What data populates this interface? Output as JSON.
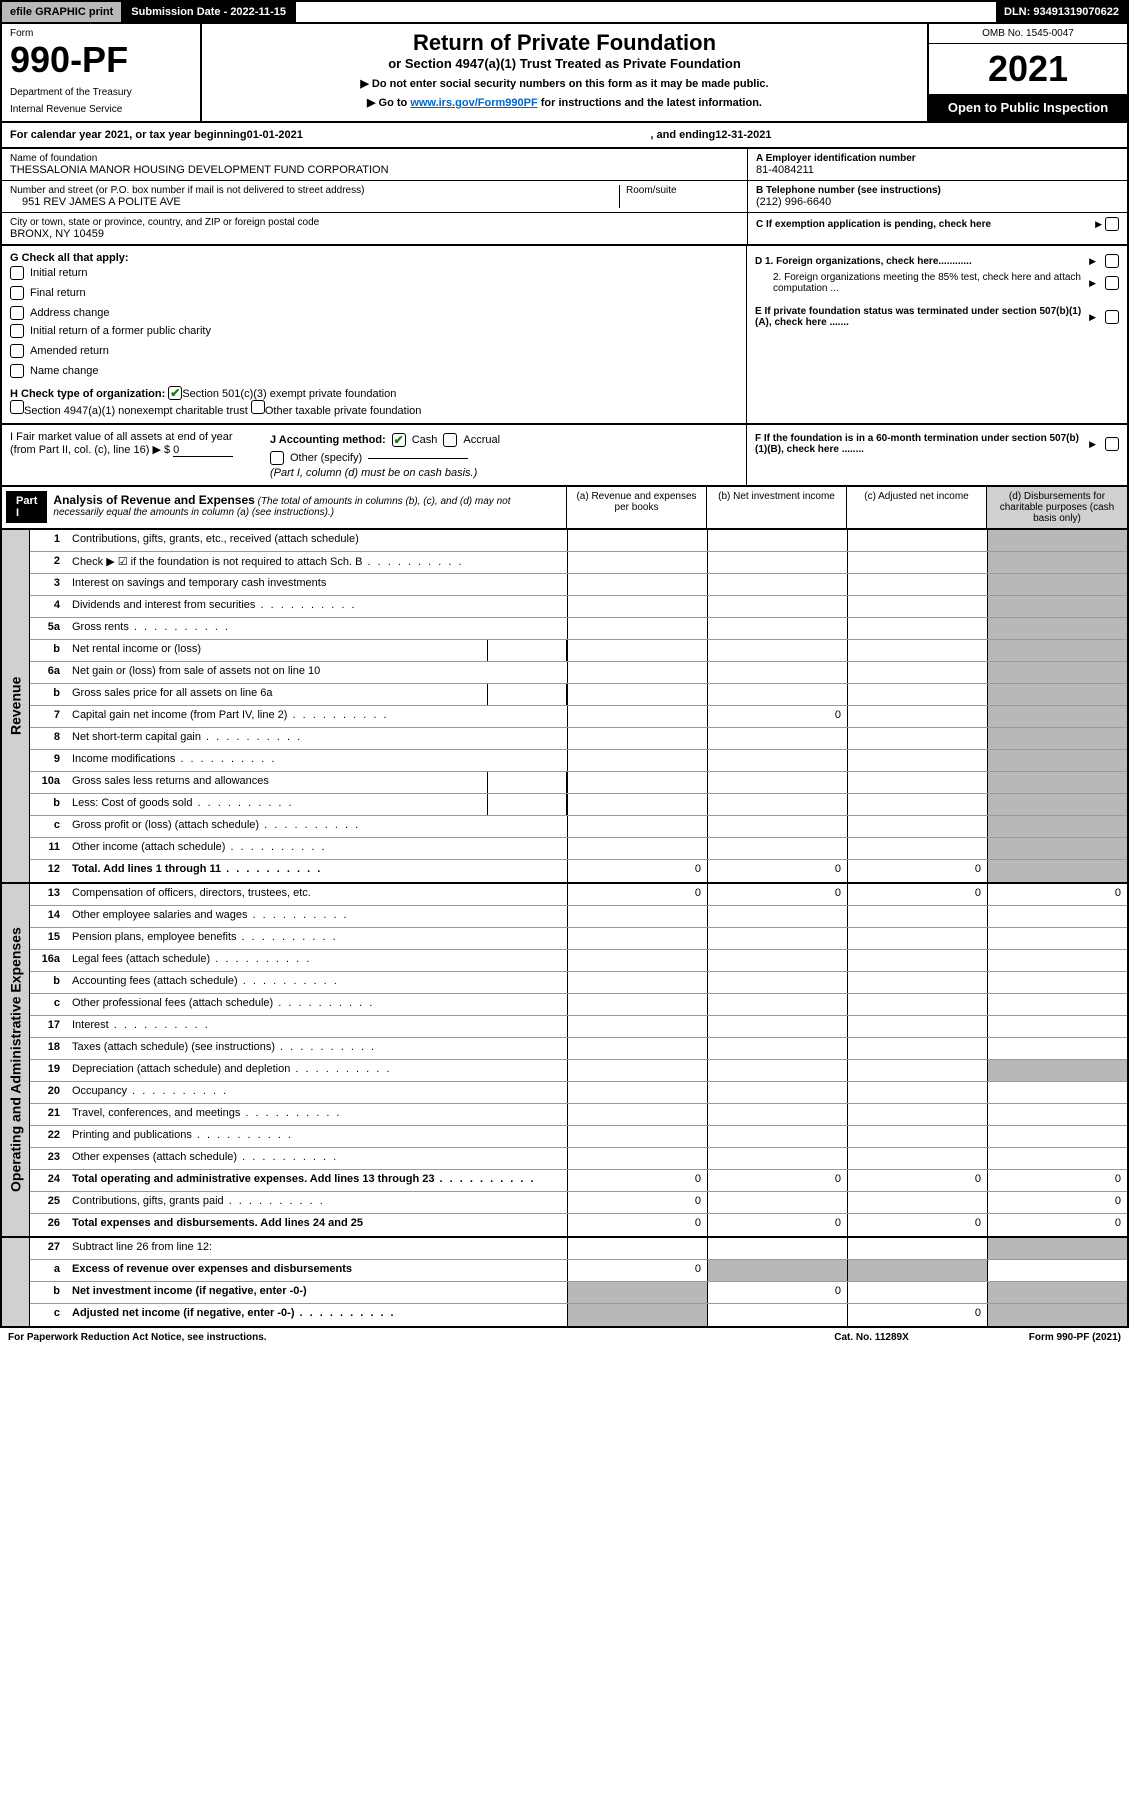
{
  "topbar": {
    "efile": "efile GRAPHIC print",
    "submission_label": "Submission Date - 2022-11-15",
    "dln": "DLN: 93491319070622"
  },
  "header": {
    "form_word": "Form",
    "form_num": "990-PF",
    "dept": "Department of the Treasury",
    "irs": "Internal Revenue Service",
    "title": "Return of Private Foundation",
    "subtitle": "or Section 4947(a)(1) Trust Treated as Private Foundation",
    "note1": "▶ Do not enter social security numbers on this form as it may be made public.",
    "note2_pre": "▶ Go to ",
    "note2_link": "www.irs.gov/Form990PF",
    "note2_post": " for instructions and the latest information.",
    "omb": "OMB No. 1545-0047",
    "year": "2021",
    "open": "Open to Public Inspection"
  },
  "calendar": {
    "text_pre": "For calendar year 2021, or tax year beginning ",
    "begin": "01-01-2021",
    "text_mid": " , and ending ",
    "end": "12-31-2021"
  },
  "info": {
    "name_label": "Name of foundation",
    "name": "THESSALONIA MANOR HOUSING DEVELOPMENT FUND CORPORATION",
    "addr_label": "Number and street (or P.O. box number if mail is not delivered to street address)",
    "addr": "951 REV JAMES A POLITE AVE",
    "room_label": "Room/suite",
    "city_label": "City or town, state or province, country, and ZIP or foreign postal code",
    "city": "BRONX, NY  10459",
    "a_label": "A Employer identification number",
    "a_val": "81-4084211",
    "b_label": "B Telephone number (see instructions)",
    "b_val": "(212) 996-6640",
    "c_label": "C If exemption application is pending, check here",
    "d1_label": "D 1. Foreign organizations, check here............",
    "d2_label": "2. Foreign organizations meeting the 85% test, check here and attach computation ...",
    "e_label": "E  If private foundation status was terminated under section 507(b)(1)(A), check here .......",
    "f_label": "F  If the foundation is in a 60-month termination under section 507(b)(1)(B), check here ........"
  },
  "g": {
    "label": "G Check all that apply:",
    "opts": [
      "Initial return",
      "Final return",
      "Address change",
      "Initial return of a former public charity",
      "Amended return",
      "Name change"
    ]
  },
  "h": {
    "label": "H Check type of organization:",
    "opt1": "Section 501(c)(3) exempt private foundation",
    "opt2": "Section 4947(a)(1) nonexempt charitable trust",
    "opt3": "Other taxable private foundation"
  },
  "i": {
    "label": "I Fair market value of all assets at end of year (from Part II, col. (c), line 16)",
    "prefix": "▶ $",
    "val": "0"
  },
  "j": {
    "label": "J Accounting method:",
    "cash": "Cash",
    "accrual": "Accrual",
    "other": "Other (specify)",
    "note": "(Part I, column (d) must be on cash basis.)"
  },
  "part1": {
    "badge": "Part I",
    "title": "Analysis of Revenue and Expenses",
    "title_note": "(The total of amounts in columns (b), (c), and (d) may not necessarily equal the amounts in column (a) (see instructions).)",
    "cols": {
      "a": "(a)  Revenue and expenses per books",
      "b": "(b)  Net investment income",
      "c": "(c)  Adjusted net income",
      "d": "(d)  Disbursements for charitable purposes (cash basis only)"
    }
  },
  "sections": {
    "revenue": "Revenue",
    "opadmin": "Operating and Administrative Expenses"
  },
  "rows": [
    {
      "n": "1",
      "d": "Contributions, gifts, grants, etc., received (attach schedule)",
      "sec": "rev"
    },
    {
      "n": "2",
      "d": "Check ▶ ☑ if the foundation is not required to attach Sch. B",
      "sec": "rev",
      "dots": true
    },
    {
      "n": "3",
      "d": "Interest on savings and temporary cash investments",
      "sec": "rev"
    },
    {
      "n": "4",
      "d": "Dividends and interest from securities",
      "sec": "rev",
      "dots": true
    },
    {
      "n": "5a",
      "d": "Gross rents",
      "sec": "rev",
      "dots": true
    },
    {
      "n": "b",
      "d": "Net rental income or (loss)",
      "sec": "rev",
      "inset": true
    },
    {
      "n": "6a",
      "d": "Net gain or (loss) from sale of assets not on line 10",
      "sec": "rev"
    },
    {
      "n": "b",
      "d": "Gross sales price for all assets on line 6a",
      "sec": "rev",
      "inset": true
    },
    {
      "n": "7",
      "d": "Capital gain net income (from Part IV, line 2)",
      "sec": "rev",
      "dots": true,
      "b": "0"
    },
    {
      "n": "8",
      "d": "Net short-term capital gain",
      "sec": "rev",
      "dots": true
    },
    {
      "n": "9",
      "d": "Income modifications",
      "sec": "rev",
      "dots": true
    },
    {
      "n": "10a",
      "d": "Gross sales less returns and allowances",
      "sec": "rev",
      "inset": true
    },
    {
      "n": "b",
      "d": "Less: Cost of goods sold",
      "sec": "rev",
      "dots": true,
      "inset": true
    },
    {
      "n": "c",
      "d": "Gross profit or (loss) (attach schedule)",
      "sec": "rev",
      "dots": true
    },
    {
      "n": "11",
      "d": "Other income (attach schedule)",
      "sec": "rev",
      "dots": true
    },
    {
      "n": "12",
      "d": "Total. Add lines 1 through 11",
      "sec": "rev",
      "bold": true,
      "dots": true,
      "a": "0",
      "b": "0",
      "c": "0"
    },
    {
      "n": "13",
      "d": "Compensation of officers, directors, trustees, etc.",
      "sec": "op",
      "a": "0",
      "b": "0",
      "c": "0",
      "dd": "0"
    },
    {
      "n": "14",
      "d": "Other employee salaries and wages",
      "sec": "op",
      "dots": true
    },
    {
      "n": "15",
      "d": "Pension plans, employee benefits",
      "sec": "op",
      "dots": true
    },
    {
      "n": "16a",
      "d": "Legal fees (attach schedule)",
      "sec": "op",
      "dots": true
    },
    {
      "n": "b",
      "d": "Accounting fees (attach schedule)",
      "sec": "op",
      "dots": true
    },
    {
      "n": "c",
      "d": "Other professional fees (attach schedule)",
      "sec": "op",
      "dots": true
    },
    {
      "n": "17",
      "d": "Interest",
      "sec": "op",
      "dots": true
    },
    {
      "n": "18",
      "d": "Taxes (attach schedule) (see instructions)",
      "sec": "op",
      "dots": true
    },
    {
      "n": "19",
      "d": "Depreciation (attach schedule) and depletion",
      "sec": "op",
      "dots": true
    },
    {
      "n": "20",
      "d": "Occupancy",
      "sec": "op",
      "dots": true
    },
    {
      "n": "21",
      "d": "Travel, conferences, and meetings",
      "sec": "op",
      "dots": true
    },
    {
      "n": "22",
      "d": "Printing and publications",
      "sec": "op",
      "dots": true
    },
    {
      "n": "23",
      "d": "Other expenses (attach schedule)",
      "sec": "op",
      "dots": true
    },
    {
      "n": "24",
      "d": "Total operating and administrative expenses. Add lines 13 through 23",
      "sec": "op",
      "bold": true,
      "dots": true,
      "a": "0",
      "b": "0",
      "c": "0",
      "dd": "0"
    },
    {
      "n": "25",
      "d": "Contributions, gifts, grants paid",
      "sec": "op",
      "dots": true,
      "a": "0",
      "dd": "0"
    },
    {
      "n": "26",
      "d": "Total expenses and disbursements. Add lines 24 and 25",
      "sec": "op",
      "bold": true,
      "a": "0",
      "b": "0",
      "c": "0",
      "dd": "0"
    },
    {
      "n": "27",
      "d": "Subtract line 26 from line 12:",
      "sec": "none"
    },
    {
      "n": "a",
      "d": "Excess of revenue over expenses and disbursements",
      "sec": "none",
      "bold": true,
      "a": "0"
    },
    {
      "n": "b",
      "d": "Net investment income (if negative, enter -0-)",
      "sec": "none",
      "bold": true,
      "b": "0"
    },
    {
      "n": "c",
      "d": "Adjusted net income (if negative, enter -0-)",
      "sec": "none",
      "bold": true,
      "dots": true,
      "c": "0"
    }
  ],
  "footer": {
    "left": "For Paperwork Reduction Act Notice, see instructions.",
    "mid": "Cat. No. 11289X",
    "right": "Form 990-PF (2021)"
  },
  "colors": {
    "black": "#000000",
    "grey_header": "#b8b8b8",
    "grey_cell": "#b8b8b8",
    "grey_side": "#d0d0d0",
    "link": "#0066cc",
    "check_green": "#1a7a1a"
  }
}
